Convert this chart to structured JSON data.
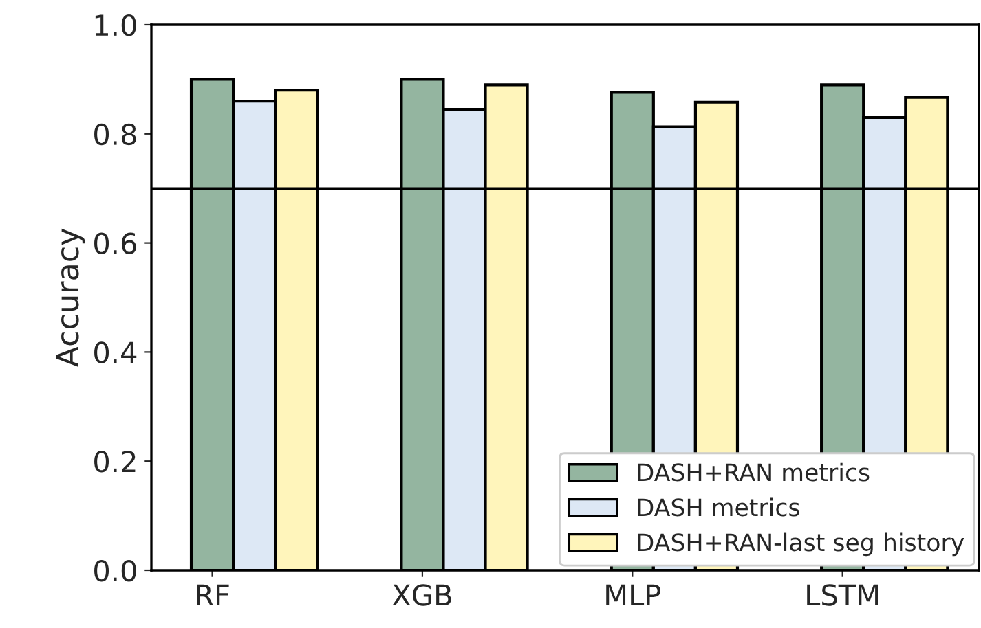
{
  "chart_data": {
    "type": "bar",
    "ylabel": "Accuracy",
    "categories": [
      "RF",
      "XGB",
      "MLP",
      "LSTM"
    ],
    "series": [
      {
        "name": "DASH+RAN metrics",
        "color": "#94b5a0",
        "values": [
          0.9,
          0.9,
          0.876,
          0.89
        ]
      },
      {
        "name": "DASH metrics",
        "color": "#dde8f5",
        "values": [
          0.86,
          0.845,
          0.813,
          0.83
        ]
      },
      {
        "name": "DASH+RAN-last seg history",
        "color": "#fff5bb",
        "values": [
          0.88,
          0.89,
          0.858,
          0.867
        ]
      }
    ],
    "ylim": [
      0,
      1.0
    ],
    "yticks": [
      {
        "value": 0,
        "label": "0.0"
      },
      {
        "value": 0.2,
        "label": "0.2"
      },
      {
        "value": 0.4,
        "label": "0.4"
      },
      {
        "value": 0.6,
        "label": "0.6"
      },
      {
        "value": 0.8,
        "label": "0.8"
      },
      {
        "value": 1.0,
        "label": "1.0"
      }
    ],
    "ref_lines": [
      {
        "axis": "y",
        "value": 0.7,
        "color": "#000000",
        "line_style": "solid"
      }
    ],
    "grid": false,
    "legend": "bottom right"
  }
}
